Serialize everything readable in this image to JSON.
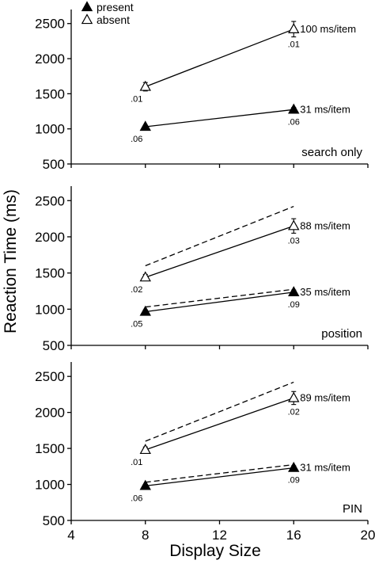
{
  "chart_data": {
    "type": "line",
    "ylabel": "Reaction Time (ms)",
    "xlabel": "Display Size",
    "xlim": [
      4,
      20
    ],
    "xticks": [
      "4",
      "8",
      "12",
      "16",
      "20"
    ],
    "ylim": [
      500,
      2700
    ],
    "yticks": [
      "500",
      "1000",
      "1500",
      "2000",
      "2500"
    ],
    "legend": {
      "placement": "top-left",
      "entries": [
        {
          "label": "present",
          "marker": "filled-triangle"
        },
        {
          "label": "absent",
          "marker": "open-triangle"
        }
      ]
    },
    "panels": [
      {
        "label": "search only",
        "series": [
          {
            "name": "absent",
            "x": [
              8,
              16
            ],
            "y": [
              1600,
              2420
            ],
            "err": [
              60,
              110
            ],
            "err_labels": [
              ".01",
              ".01"
            ],
            "slope_label": "100 ms/item"
          },
          {
            "name": "present",
            "x": [
              8,
              16
            ],
            "y": [
              1030,
              1275
            ],
            "err": [
              20,
              30
            ],
            "err_labels": [
              ".06",
              ".06"
            ],
            "slope_label": "31 ms/item"
          }
        ],
        "reference": []
      },
      {
        "label": "position",
        "series": [
          {
            "name": "absent",
            "x": [
              8,
              16
            ],
            "y": [
              1440,
              2150
            ],
            "err": [
              40,
              100
            ],
            "err_labels": [
              ".02",
              ".03"
            ],
            "slope_label": "88 ms/item"
          },
          {
            "name": "present",
            "x": [
              8,
              16
            ],
            "y": [
              965,
              1235
            ],
            "err": [
              25,
              30
            ],
            "err_labels": [
              ".05",
              ".09"
            ],
            "slope_label": "35 ms/item"
          }
        ],
        "reference": [
          {
            "of": "absent",
            "x": [
              8,
              16
            ],
            "y": [
              1600,
              2420
            ]
          },
          {
            "of": "present",
            "x": [
              8,
              16
            ],
            "y": [
              1030,
              1275
            ]
          }
        ]
      },
      {
        "label": "PIN",
        "series": [
          {
            "name": "absent",
            "x": [
              8,
              16
            ],
            "y": [
              1480,
              2200
            ],
            "err": [
              40,
              90
            ],
            "err_labels": [
              ".01",
              ".02"
            ],
            "slope_label": "89 ms/item"
          },
          {
            "name": "present",
            "x": [
              8,
              16
            ],
            "y": [
              980,
              1230
            ],
            "err": [
              20,
              30
            ],
            "err_labels": [
              ".06",
              ".09"
            ],
            "slope_label": "31 ms/item"
          }
        ],
        "reference": [
          {
            "of": "absent",
            "x": [
              8,
              16
            ],
            "y": [
              1600,
              2420
            ]
          },
          {
            "of": "present",
            "x": [
              8,
              16
            ],
            "y": [
              1030,
              1275
            ]
          }
        ]
      }
    ]
  }
}
